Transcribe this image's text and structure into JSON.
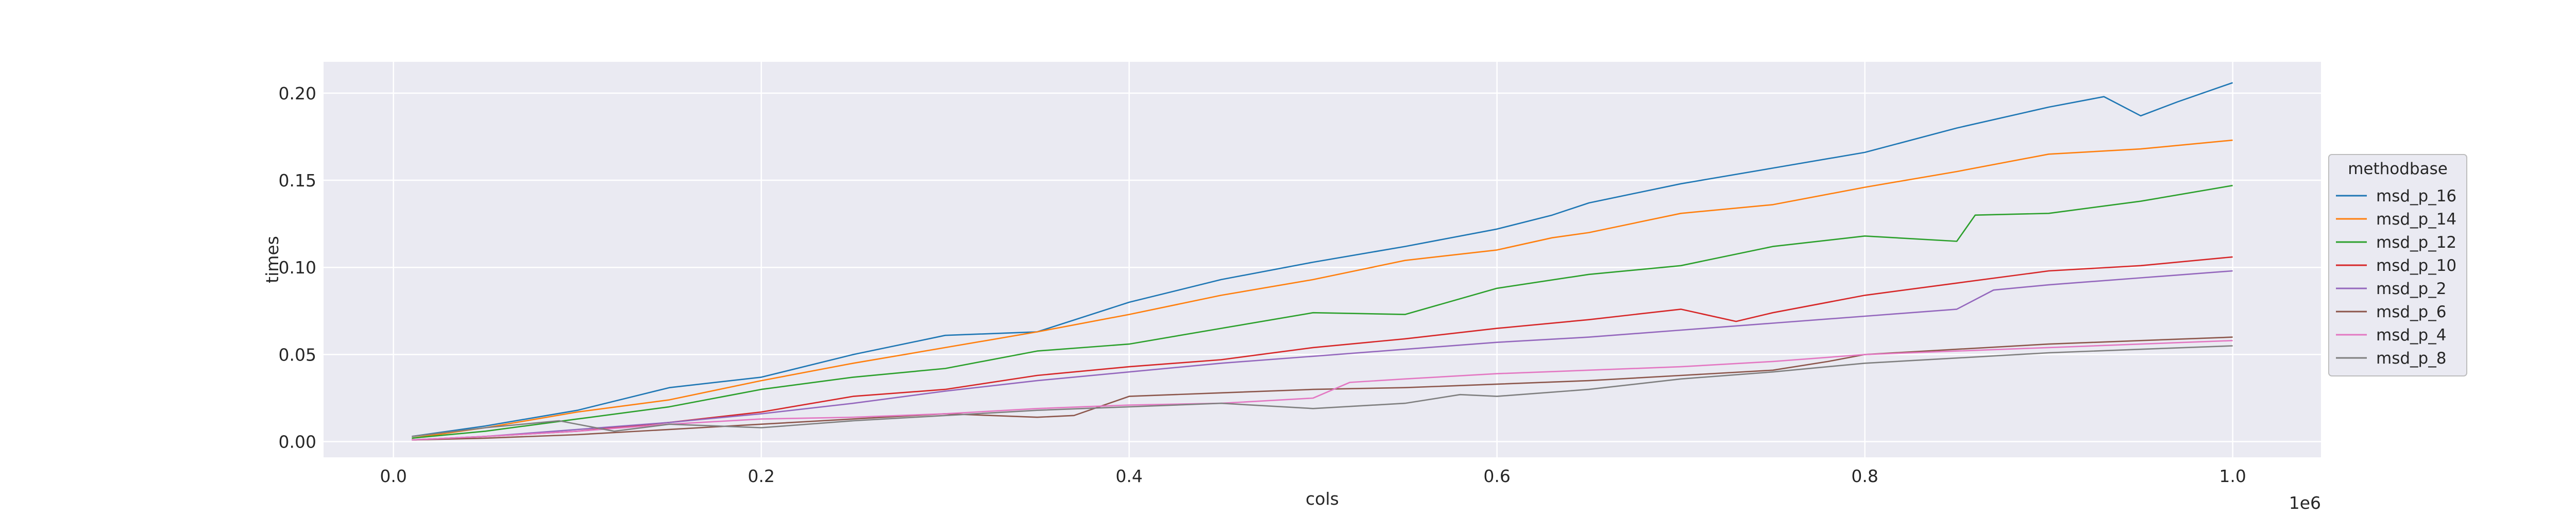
{
  "chart_data": {
    "type": "line",
    "title": "",
    "xlabel": "cols",
    "ylabel": "times",
    "x_offset_label": "1e6",
    "xlim": [
      -0.038,
      1.048
    ],
    "ylim": [
      -0.009,
      0.218
    ],
    "xticks": [
      0.0,
      0.2,
      0.4,
      0.6,
      0.8,
      1.0
    ],
    "xtick_labels": [
      "0.0",
      "0.2",
      "0.4",
      "0.6",
      "0.8",
      "1.0"
    ],
    "yticks": [
      0.0,
      0.05,
      0.1,
      0.15,
      0.2
    ],
    "ytick_labels": [
      "0.00",
      "0.05",
      "0.10",
      "0.15",
      "0.20"
    ],
    "grid": true,
    "background": "#eaeaf2",
    "legend": {
      "title": "methodbase",
      "placement": "right-outside"
    },
    "series": [
      {
        "name": "msd_p_16",
        "color": "#1f77b4",
        "points": [
          [
            0.01,
            0.003
          ],
          [
            0.05,
            0.009
          ],
          [
            0.1,
            0.018
          ],
          [
            0.15,
            0.031
          ],
          [
            0.2,
            0.037
          ],
          [
            0.25,
            0.05
          ],
          [
            0.3,
            0.061
          ],
          [
            0.35,
            0.063
          ],
          [
            0.4,
            0.08
          ],
          [
            0.45,
            0.093
          ],
          [
            0.5,
            0.103
          ],
          [
            0.55,
            0.112
          ],
          [
            0.6,
            0.122
          ],
          [
            0.63,
            0.13
          ],
          [
            0.65,
            0.137
          ],
          [
            0.7,
            0.148
          ],
          [
            0.75,
            0.157
          ],
          [
            0.8,
            0.166
          ],
          [
            0.85,
            0.18
          ],
          [
            0.9,
            0.192
          ],
          [
            0.93,
            0.198
          ],
          [
            0.95,
            0.187
          ],
          [
            0.97,
            0.195
          ],
          [
            1.0,
            0.206
          ]
        ]
      },
      {
        "name": "msd_p_14",
        "color": "#ff7f0e",
        "points": [
          [
            0.01,
            0.002
          ],
          [
            0.05,
            0.008
          ],
          [
            0.1,
            0.017
          ],
          [
            0.15,
            0.024
          ],
          [
            0.2,
            0.035
          ],
          [
            0.25,
            0.045
          ],
          [
            0.3,
            0.054
          ],
          [
            0.35,
            0.063
          ],
          [
            0.4,
            0.073
          ],
          [
            0.45,
            0.084
          ],
          [
            0.5,
            0.093
          ],
          [
            0.55,
            0.104
          ],
          [
            0.6,
            0.11
          ],
          [
            0.63,
            0.117
          ],
          [
            0.65,
            0.12
          ],
          [
            0.7,
            0.131
          ],
          [
            0.75,
            0.136
          ],
          [
            0.8,
            0.146
          ],
          [
            0.85,
            0.155
          ],
          [
            0.9,
            0.165
          ],
          [
            0.95,
            0.168
          ],
          [
            1.0,
            0.173
          ]
        ]
      },
      {
        "name": "msd_p_12",
        "color": "#2ca02c",
        "points": [
          [
            0.01,
            0.002
          ],
          [
            0.05,
            0.006
          ],
          [
            0.1,
            0.013
          ],
          [
            0.15,
            0.02
          ],
          [
            0.2,
            0.03
          ],
          [
            0.25,
            0.037
          ],
          [
            0.3,
            0.042
          ],
          [
            0.35,
            0.052
          ],
          [
            0.4,
            0.056
          ],
          [
            0.45,
            0.065
          ],
          [
            0.5,
            0.074
          ],
          [
            0.55,
            0.073
          ],
          [
            0.6,
            0.088
          ],
          [
            0.65,
            0.096
          ],
          [
            0.7,
            0.101
          ],
          [
            0.75,
            0.112
          ],
          [
            0.8,
            0.118
          ],
          [
            0.85,
            0.115
          ],
          [
            0.86,
            0.13
          ],
          [
            0.9,
            0.131
          ],
          [
            0.95,
            0.138
          ],
          [
            1.0,
            0.147
          ]
        ]
      },
      {
        "name": "msd_p_10",
        "color": "#d62728",
        "points": [
          [
            0.01,
            0.001
          ],
          [
            0.05,
            0.003
          ],
          [
            0.1,
            0.006
          ],
          [
            0.15,
            0.011
          ],
          [
            0.2,
            0.017
          ],
          [
            0.25,
            0.026
          ],
          [
            0.3,
            0.03
          ],
          [
            0.35,
            0.038
          ],
          [
            0.4,
            0.043
          ],
          [
            0.45,
            0.047
          ],
          [
            0.5,
            0.054
          ],
          [
            0.55,
            0.059
          ],
          [
            0.6,
            0.065
          ],
          [
            0.65,
            0.07
          ],
          [
            0.7,
            0.076
          ],
          [
            0.73,
            0.069
          ],
          [
            0.75,
            0.074
          ],
          [
            0.8,
            0.084
          ],
          [
            0.85,
            0.091
          ],
          [
            0.9,
            0.098
          ],
          [
            0.95,
            0.101
          ],
          [
            1.0,
            0.106
          ]
        ]
      },
      {
        "name": "msd_p_2",
        "color": "#9467bd",
        "points": [
          [
            0.01,
            0.001
          ],
          [
            0.05,
            0.003
          ],
          [
            0.1,
            0.007
          ],
          [
            0.15,
            0.011
          ],
          [
            0.2,
            0.016
          ],
          [
            0.25,
            0.022
          ],
          [
            0.3,
            0.029
          ],
          [
            0.35,
            0.035
          ],
          [
            0.4,
            0.04
          ],
          [
            0.45,
            0.045
          ],
          [
            0.5,
            0.049
          ],
          [
            0.55,
            0.053
          ],
          [
            0.6,
            0.057
          ],
          [
            0.65,
            0.06
          ],
          [
            0.7,
            0.064
          ],
          [
            0.75,
            0.068
          ],
          [
            0.8,
            0.072
          ],
          [
            0.85,
            0.076
          ],
          [
            0.87,
            0.087
          ],
          [
            0.9,
            0.09
          ],
          [
            0.95,
            0.094
          ],
          [
            1.0,
            0.098
          ]
        ]
      },
      {
        "name": "msd_p_6",
        "color": "#8c564b",
        "points": [
          [
            0.01,
            0.001
          ],
          [
            0.05,
            0.002
          ],
          [
            0.1,
            0.004
          ],
          [
            0.15,
            0.007
          ],
          [
            0.2,
            0.01
          ],
          [
            0.25,
            0.013
          ],
          [
            0.3,
            0.016
          ],
          [
            0.35,
            0.014
          ],
          [
            0.37,
            0.015
          ],
          [
            0.4,
            0.026
          ],
          [
            0.45,
            0.028
          ],
          [
            0.5,
            0.03
          ],
          [
            0.55,
            0.031
          ],
          [
            0.6,
            0.033
          ],
          [
            0.65,
            0.035
          ],
          [
            0.7,
            0.038
          ],
          [
            0.75,
            0.041
          ],
          [
            0.78,
            0.046
          ],
          [
            0.8,
            0.05
          ],
          [
            0.85,
            0.053
          ],
          [
            0.9,
            0.056
          ],
          [
            0.95,
            0.058
          ],
          [
            1.0,
            0.06
          ]
        ]
      },
      {
        "name": "msd_p_4",
        "color": "#e377c2",
        "points": [
          [
            0.01,
            0.001
          ],
          [
            0.05,
            0.003
          ],
          [
            0.1,
            0.006
          ],
          [
            0.15,
            0.01
          ],
          [
            0.2,
            0.013
          ],
          [
            0.25,
            0.014
          ],
          [
            0.3,
            0.016
          ],
          [
            0.35,
            0.019
          ],
          [
            0.4,
            0.021
          ],
          [
            0.45,
            0.022
          ],
          [
            0.5,
            0.025
          ],
          [
            0.52,
            0.034
          ],
          [
            0.55,
            0.036
          ],
          [
            0.6,
            0.039
          ],
          [
            0.65,
            0.041
          ],
          [
            0.7,
            0.043
          ],
          [
            0.75,
            0.046
          ],
          [
            0.8,
            0.05
          ],
          [
            0.85,
            0.052
          ],
          [
            0.9,
            0.054
          ],
          [
            0.95,
            0.056
          ],
          [
            1.0,
            0.058
          ]
        ]
      },
      {
        "name": "msd_p_8",
        "color": "#7f7f7f",
        "points": [
          [
            0.01,
            0.003
          ],
          [
            0.05,
            0.008
          ],
          [
            0.09,
            0.012
          ],
          [
            0.12,
            0.006
          ],
          [
            0.15,
            0.01
          ],
          [
            0.2,
            0.008
          ],
          [
            0.25,
            0.012
          ],
          [
            0.3,
            0.015
          ],
          [
            0.35,
            0.018
          ],
          [
            0.4,
            0.02
          ],
          [
            0.45,
            0.022
          ],
          [
            0.5,
            0.019
          ],
          [
            0.55,
            0.022
          ],
          [
            0.58,
            0.027
          ],
          [
            0.6,
            0.026
          ],
          [
            0.65,
            0.03
          ],
          [
            0.7,
            0.036
          ],
          [
            0.75,
            0.04
          ],
          [
            0.8,
            0.045
          ],
          [
            0.85,
            0.048
          ],
          [
            0.9,
            0.051
          ],
          [
            0.95,
            0.053
          ],
          [
            1.0,
            0.055
          ]
        ]
      }
    ]
  }
}
